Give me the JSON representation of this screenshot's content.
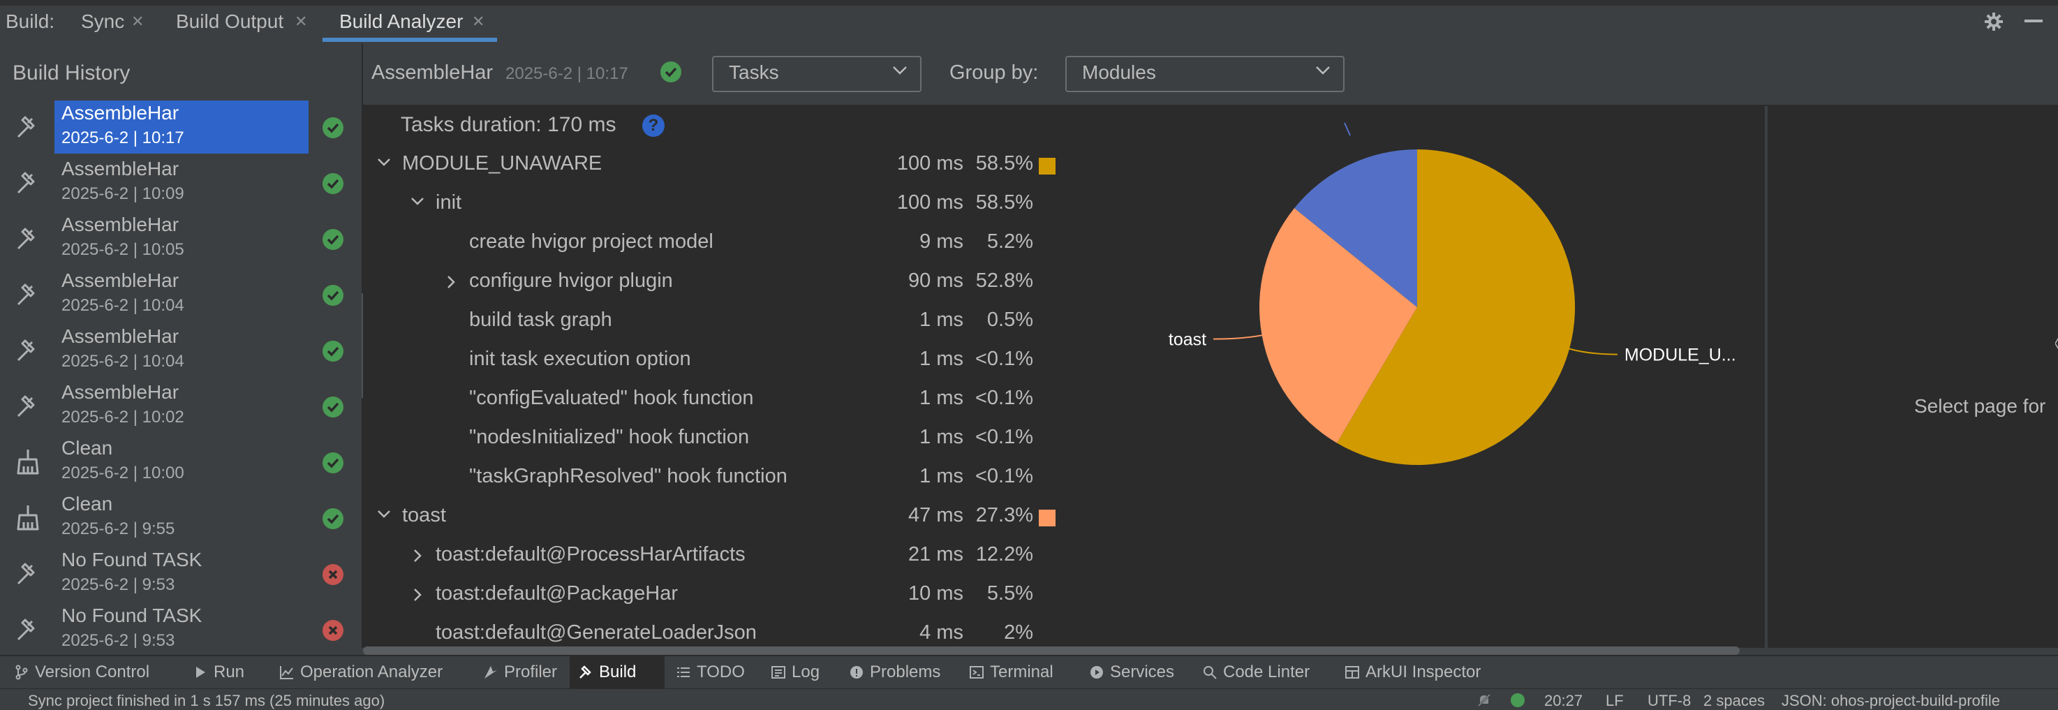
{
  "tabs_bar": {
    "prefix": "Build:",
    "tabs": [
      {
        "label": "Sync"
      },
      {
        "label": "Build Output"
      },
      {
        "label": "Build Analyzer"
      }
    ]
  },
  "history": {
    "title": "Build History",
    "items": [
      {
        "name": "AssembleHar",
        "date": "2025-6-2 | 10:17",
        "status": "success",
        "icon": "hammer-icon",
        "selected": true
      },
      {
        "name": "AssembleHar",
        "date": "2025-6-2 | 10:09",
        "status": "success",
        "icon": "hammer-icon"
      },
      {
        "name": "AssembleHar",
        "date": "2025-6-2 | 10:05",
        "status": "success",
        "icon": "hammer-icon"
      },
      {
        "name": "AssembleHar",
        "date": "2025-6-2 | 10:04",
        "status": "success",
        "icon": "hammer-icon"
      },
      {
        "name": "AssembleHar",
        "date": "2025-6-2 | 10:04",
        "status": "success",
        "icon": "hammer-icon"
      },
      {
        "name": "AssembleHar",
        "date": "2025-6-2 | 10:02",
        "status": "success",
        "icon": "hammer-icon"
      },
      {
        "name": "Clean",
        "date": "2025-6-2 | 10:00",
        "status": "success",
        "icon": "broom-icon"
      },
      {
        "name": "Clean",
        "date": "2025-6-2 | 9:55",
        "status": "success",
        "icon": "broom-icon"
      },
      {
        "name": "No Found TASK",
        "date": "2025-6-2 | 9:53",
        "status": "failed",
        "icon": "hammer-icon"
      },
      {
        "name": "No Found TASK",
        "date": "2025-6-2 | 9:53",
        "status": "failed",
        "icon": "hammer-icon"
      }
    ]
  },
  "analyzer": {
    "build_name": "AssembleHar",
    "build_time": "2025-6-2 | 10:17",
    "view_select": "Tasks",
    "group_by_label": "Group by:",
    "group_by_select": "Modules",
    "duration_text": "Tasks duration: 170 ms",
    "help_glyph": "?",
    "rows": [
      {
        "label": "MODULE_UNAWARE",
        "ms": "100 ms",
        "pct": "58.5%",
        "indent": 0,
        "arrow": "down",
        "swatch": "#d19a00"
      },
      {
        "label": "init",
        "ms": "100 ms",
        "pct": "58.5%",
        "indent": 1,
        "arrow": "down"
      },
      {
        "label": "create hvigor project model",
        "ms": "9 ms",
        "pct": "5.2%",
        "indent": 2,
        "arrow": ""
      },
      {
        "label": "configure hvigor plugin",
        "ms": "90 ms",
        "pct": "52.8%",
        "indent": 2,
        "arrow": "right"
      },
      {
        "label": "build task graph",
        "ms": "1 ms",
        "pct": "0.5%",
        "indent": 2,
        "arrow": ""
      },
      {
        "label": "init task execution option",
        "ms": "1 ms",
        "pct": "<0.1%",
        "indent": 2,
        "arrow": ""
      },
      {
        "label": "\"configEvaluated\" hook function",
        "ms": "1 ms",
        "pct": "<0.1%",
        "indent": 2,
        "arrow": ""
      },
      {
        "label": "\"nodesInitialized\" hook function",
        "ms": "1 ms",
        "pct": "<0.1%",
        "indent": 2,
        "arrow": ""
      },
      {
        "label": "\"taskGraphResolved\" hook function",
        "ms": "1 ms",
        "pct": "<0.1%",
        "indent": 2,
        "arrow": ""
      },
      {
        "label": "toast",
        "ms": "47 ms",
        "pct": "27.3%",
        "indent": 0,
        "arrow": "down",
        "swatch": "#ff9a63"
      },
      {
        "label": "toast:default@ProcessHarArtifacts",
        "ms": "21 ms",
        "pct": "12.2%",
        "indent": 1,
        "arrow": "right"
      },
      {
        "label": "toast:default@PackageHar",
        "ms": "10 ms",
        "pct": "5.5%",
        "indent": 1,
        "arrow": "right"
      },
      {
        "label": "toast:default@GenerateLoaderJson",
        "ms": "4 ms",
        "pct": "2%",
        "indent": 1,
        "arrow": ""
      }
    ],
    "pie": {
      "slices": [
        {
          "label": "MODULE_U...",
          "value": 58.5,
          "color": "#d19a00"
        },
        {
          "label": "toast",
          "value": 27.3,
          "color": "#ff9a63"
        },
        {
          "label": "",
          "value": 14.2,
          "color": "#5470c6"
        }
      ]
    },
    "right_panel_text": "Select page for"
  },
  "toolwindows": [
    {
      "label": "Version Control",
      "icon": "branch-icon"
    },
    {
      "label": "Run",
      "icon": "play-icon"
    },
    {
      "label": "Operation Analyzer",
      "icon": "chart-line-icon"
    },
    {
      "label": "Profiler",
      "icon": "gauge-icon"
    },
    {
      "label": "Build",
      "icon": "hammer-icon",
      "active": true
    },
    {
      "label": "TODO",
      "icon": "list-icon"
    },
    {
      "label": "Log",
      "icon": "log-icon"
    },
    {
      "label": "Problems",
      "icon": "info-icon"
    },
    {
      "label": "Terminal",
      "icon": "terminal-icon"
    },
    {
      "label": "Services",
      "icon": "services-icon"
    },
    {
      "label": "Code Linter",
      "icon": "linter-icon"
    },
    {
      "label": "ArkUI Inspector",
      "icon": "inspector-icon"
    }
  ],
  "statusbar": {
    "message": "Sync project finished in 1 s 157 ms (25 minutes ago)",
    "time": "20:27",
    "line_sep": "LF",
    "encoding": "UTF-8",
    "indent": "2 spaces",
    "schema": "JSON: ohos-project-build-profile"
  },
  "colors": {
    "accent": "#2f65ca",
    "success": "#499c54",
    "error": "#c75450"
  }
}
